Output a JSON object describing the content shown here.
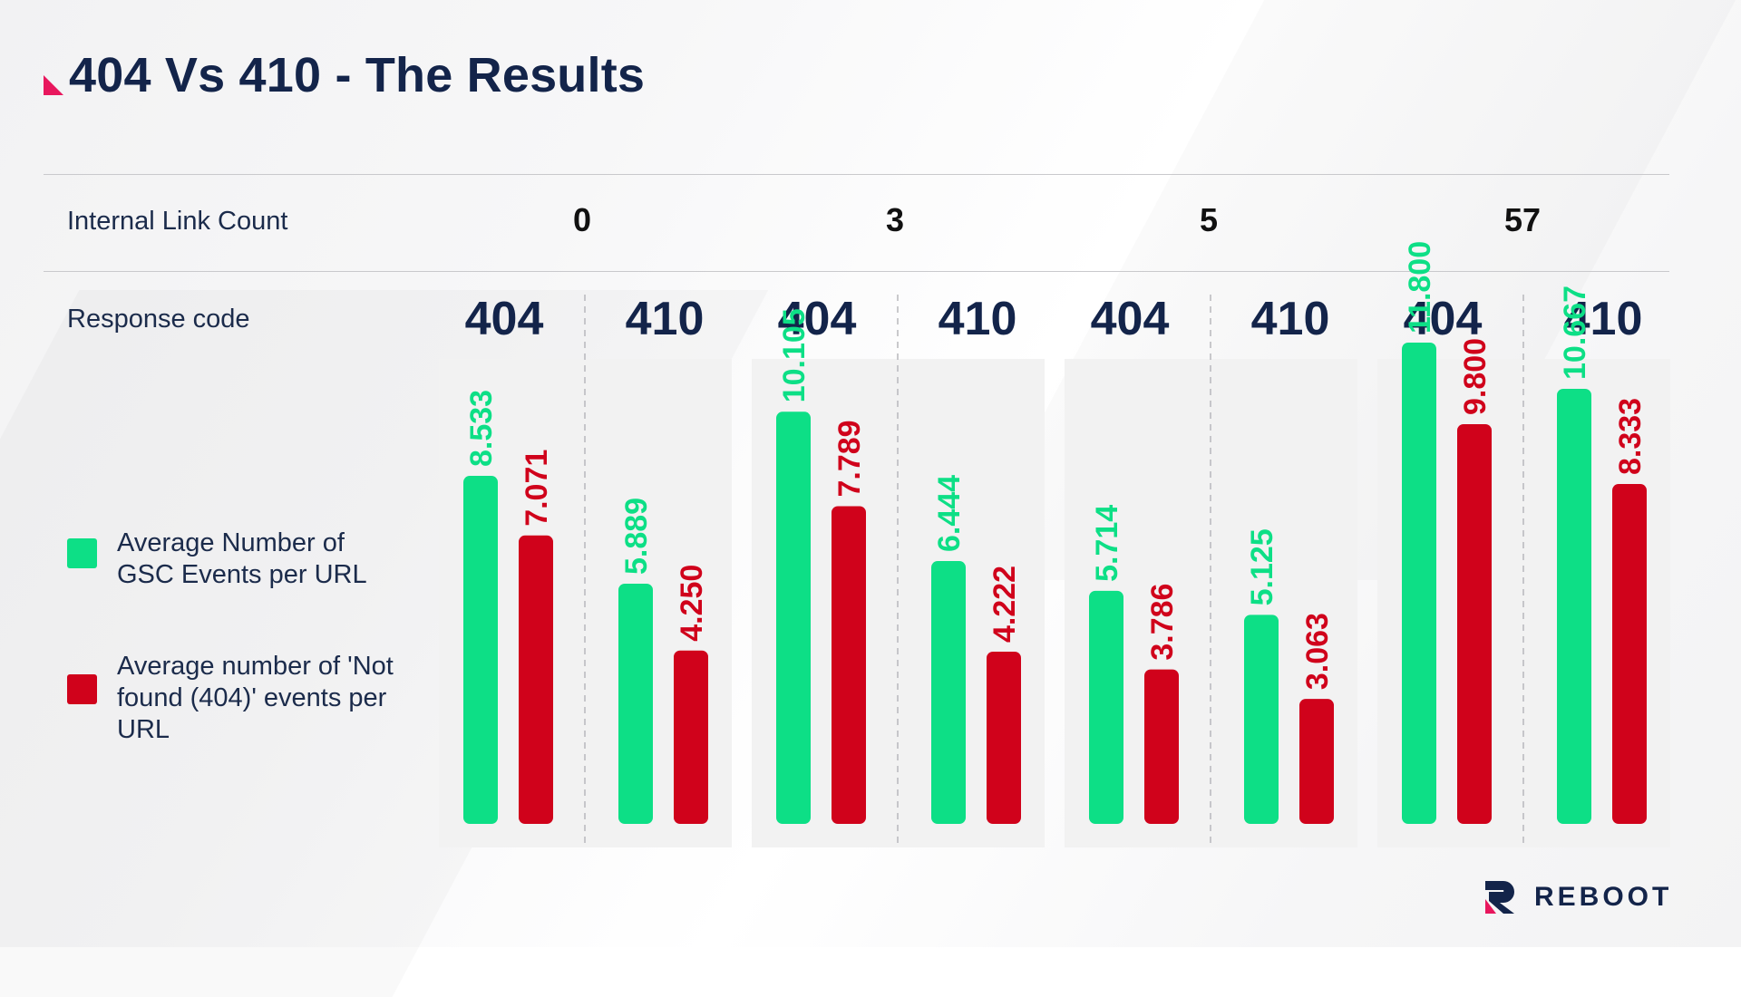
{
  "title": "404 Vs 410 - The Results",
  "row_labels": {
    "link_count": "Internal Link Count",
    "response_code": "Response code"
  },
  "legend": [
    {
      "label": "Average Number of GSC Events per URL",
      "color": "#0ddf86"
    },
    {
      "label": "Average number of 'Not found (404)' events per URL",
      "color": "#d0021b"
    }
  ],
  "colors": {
    "accent": "#e8175d",
    "title": "#13244a",
    "panel": "#f2f2f2",
    "green": "#0ddf86",
    "red": "#d0021b"
  },
  "logo": {
    "text": "REBOOT",
    "icon": "reboot-logo-icon"
  },
  "chart_data": {
    "type": "bar",
    "xlabel": "Internal Link Count",
    "groups": [
      {
        "link_count": "0",
        "codes": [
          {
            "code": "404",
            "gsc": 8.533,
            "nf": 7.071
          },
          {
            "code": "410",
            "gsc": 5.889,
            "nf": 4.25
          }
        ]
      },
      {
        "link_count": "3",
        "codes": [
          {
            "code": "404",
            "gsc": 10.105,
            "nf": 7.789
          },
          {
            "code": "410",
            "gsc": 6.444,
            "nf": 4.222
          }
        ]
      },
      {
        "link_count": "5",
        "codes": [
          {
            "code": "404",
            "gsc": 5.714,
            "nf": 3.786
          },
          {
            "code": "410",
            "gsc": 5.125,
            "nf": 3.063
          }
        ]
      },
      {
        "link_count": "57",
        "codes": [
          {
            "code": "404",
            "gsc": 11.8,
            "nf": 9.8
          },
          {
            "code": "410",
            "gsc": 10.667,
            "nf": 8.333
          }
        ]
      }
    ],
    "series": [
      {
        "name": "Average Number of GSC Events per URL",
        "key": "gsc"
      },
      {
        "name": "Average number of 'Not found (404)' events per URL",
        "key": "nf"
      }
    ],
    "value_labels": {
      "gsc": [
        "8.533",
        "5.889",
        "10.105",
        "6.444",
        "5.714",
        "5.125",
        "11.800",
        "10.667"
      ],
      "nf": [
        "7.071",
        "4.250",
        "7.789",
        "4.222",
        "3.786",
        "3.063",
        "9.800",
        "8.333"
      ]
    },
    "ylim": [
      0,
      12
    ],
    "grid": false,
    "legend_position": "left"
  }
}
